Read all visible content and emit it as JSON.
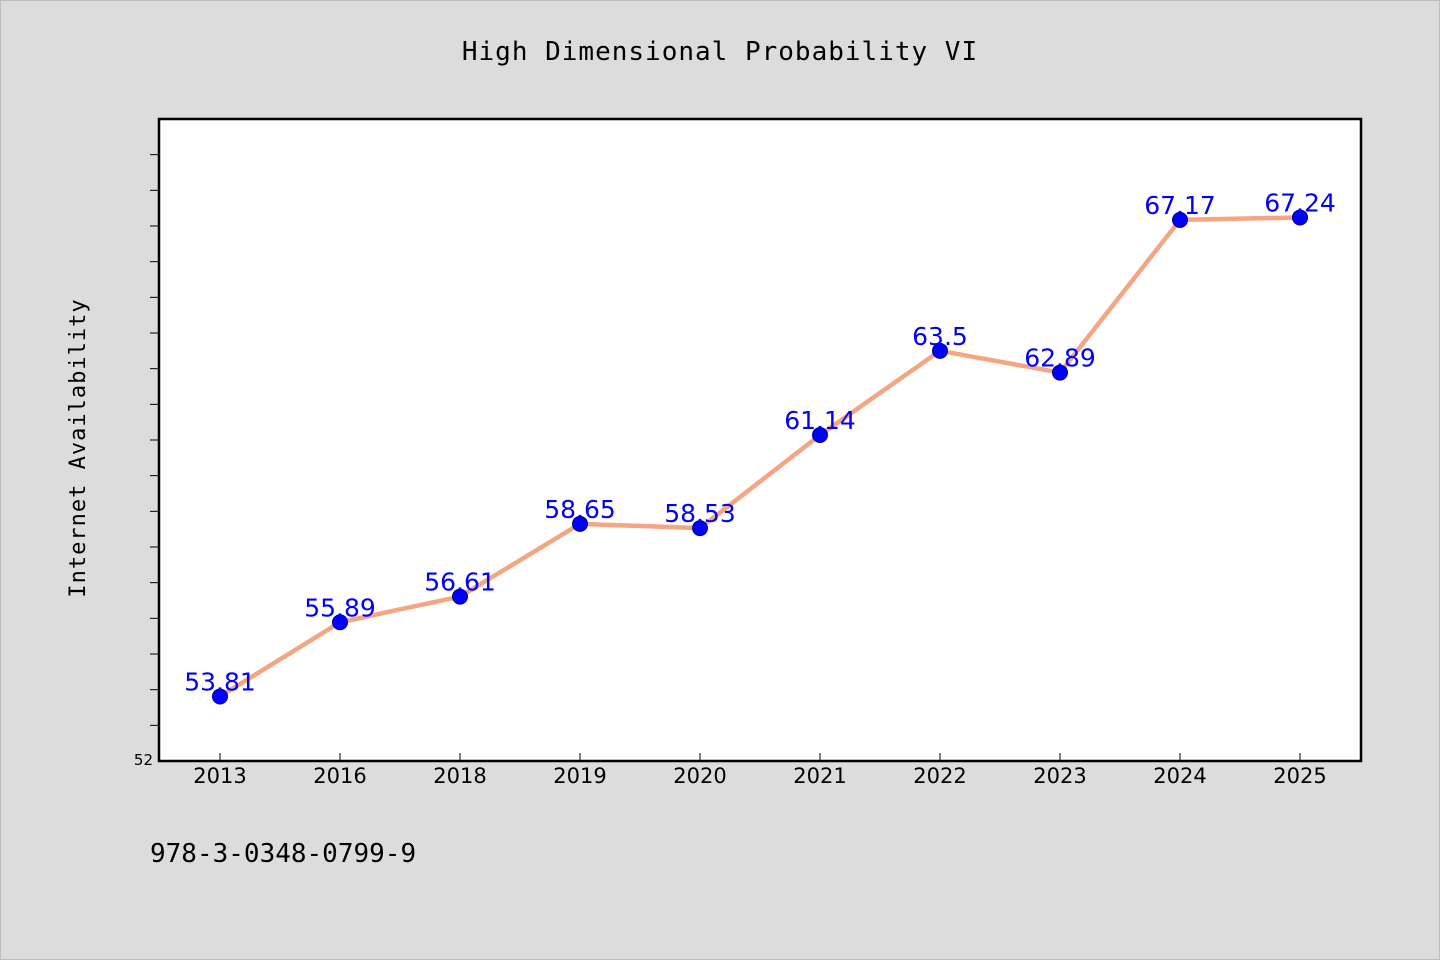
{
  "chart_data": {
    "type": "line",
    "title": "High Dimensional Probability VI",
    "xlabel": "",
    "ylabel": "Internet Availability",
    "categories": [
      "2013",
      "2016",
      "2018",
      "2019",
      "2020",
      "2021",
      "2022",
      "2023",
      "2024",
      "2025"
    ],
    "series": [
      {
        "values": [
          53.81,
          55.89,
          56.61,
          58.65,
          58.53,
          61.14,
          63.5,
          62.89,
          67.17,
          67.24
        ],
        "labels": [
          "53.81",
          "55.89",
          "56.61",
          "58.65",
          "58.53",
          "61.14",
          "63.5",
          "62.89",
          "67.17",
          "67.24"
        ]
      }
    ],
    "ylim": [
      52,
      70
    ],
    "y_min_label": "52",
    "grid": false,
    "legend": "none"
  },
  "footer": {
    "isbn": "978-3-0348-0799-9"
  },
  "colors": {
    "background": "#dcdcdc",
    "plot_background": "#ffffff",
    "line": "#f4a582",
    "marker": "#0000ff",
    "data_label": "#0000ff"
  }
}
